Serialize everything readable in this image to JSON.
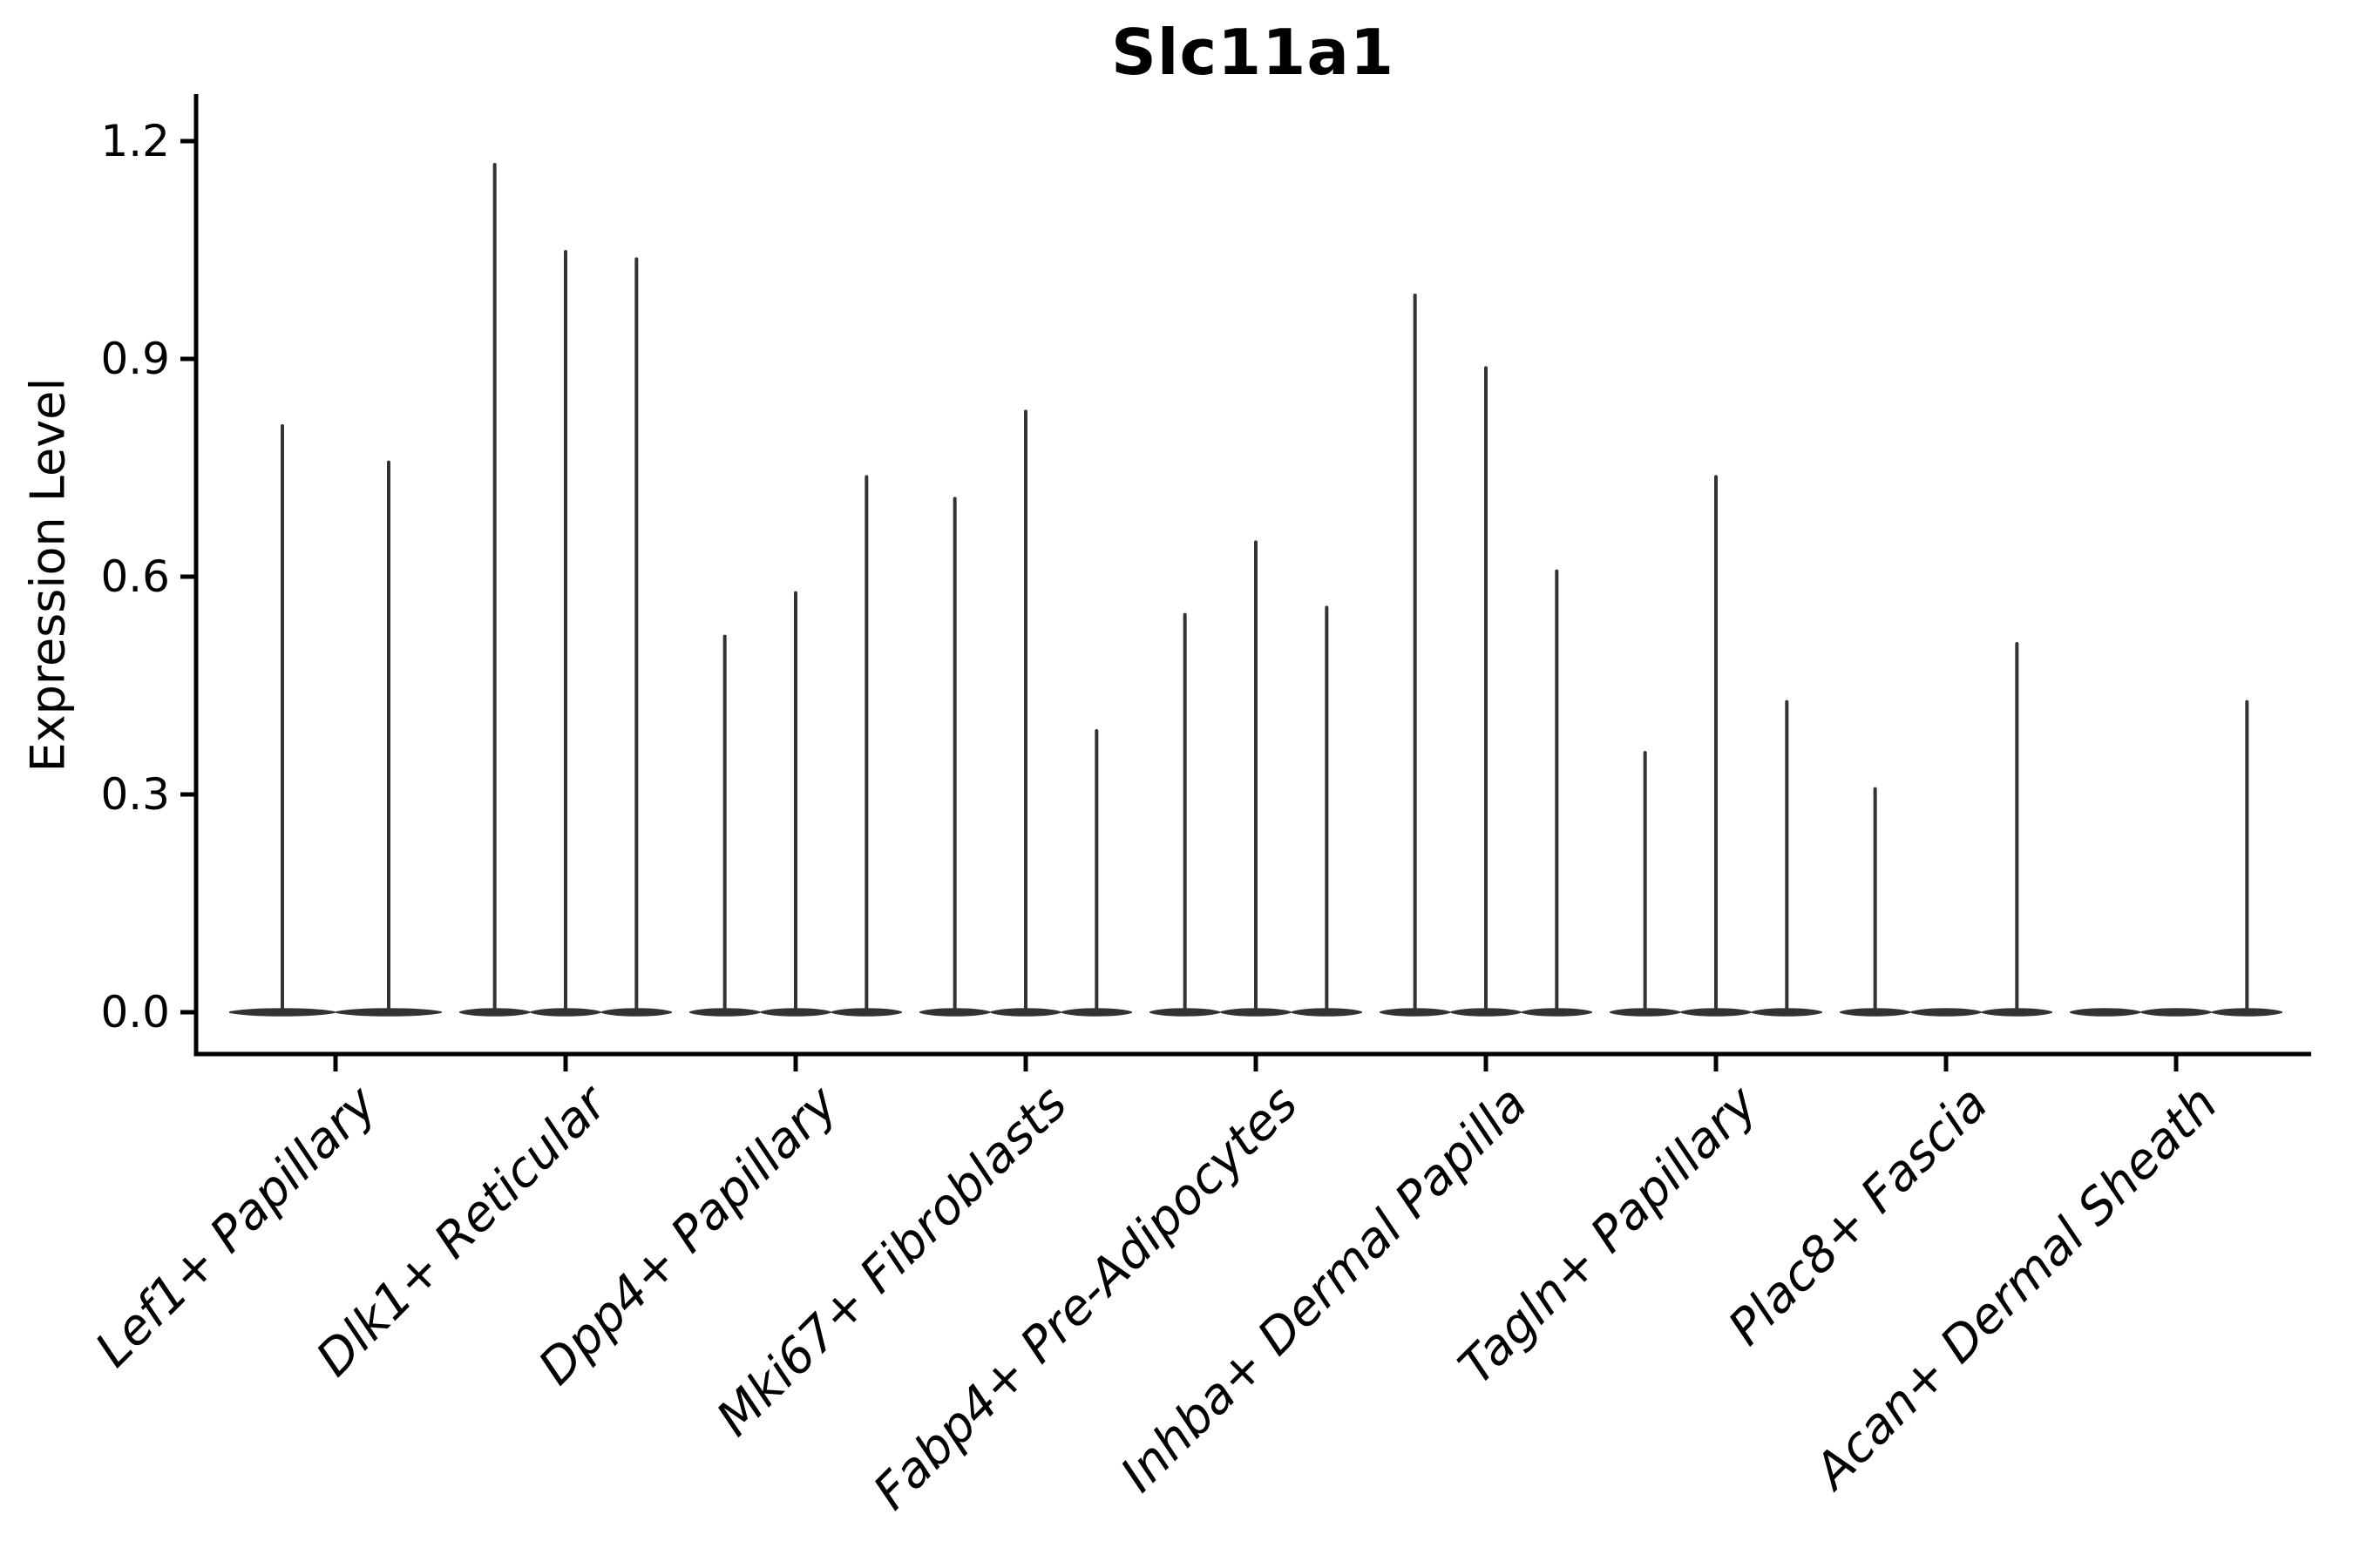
{
  "title": "Slc11a1",
  "chart_data": {
    "type": "violin",
    "title": "Slc11a1",
    "xlabel": "",
    "ylabel": "Expression Level",
    "ylim": [
      0,
      1.2
    ],
    "yticks": [
      "0.0",
      "0.3",
      "0.6",
      "0.9",
      "1.2"
    ],
    "grid": false,
    "legend": "none",
    "description": "Seurat-style violin plot of Slc11a1 expression; thin density spikes rise from flat zero-inflated violin bodies; several violins are flat at 0 (no spike); Lef1+ Papillary group shows only 2 violins",
    "categories": [
      "Lef1+ Papillary",
      "Dlk1+ Reticular",
      "Dpp4+ Papillary",
      "Mki67+ Fibroblasts",
      "Fabp4+ Pre-Adipocytes",
      "Inhba+ Dermal Papilla",
      "Tagln+ Papillary",
      "Plac8+ Fascia",
      "Acan+ Dermal Sheath"
    ],
    "series": [
      {
        "category": "Lef1+ Papillary",
        "violin_max_expression": [
          0.81,
          0.76
        ]
      },
      {
        "category": "Dlk1+ Reticular",
        "violin_max_expression": [
          1.17,
          1.05,
          1.04
        ]
      },
      {
        "category": "Dpp4+ Papillary",
        "violin_max_expression": [
          0.52,
          0.58,
          0.74
        ]
      },
      {
        "category": "Mki67+ Fibroblasts",
        "violin_max_expression": [
          0.71,
          0.83,
          0.39
        ]
      },
      {
        "category": "Fabp4+ Pre-Adipocytes",
        "violin_max_expression": [
          0.55,
          0.65,
          0.56
        ]
      },
      {
        "category": "Inhba+ Dermal Papilla",
        "violin_max_expression": [
          0.99,
          0.89,
          0.61
        ]
      },
      {
        "category": "Tagln+ Papillary",
        "violin_max_expression": [
          0.36,
          0.74,
          0.43
        ]
      },
      {
        "category": "Plac8+ Fascia",
        "violin_max_expression": [
          0.31,
          0,
          0.51
        ]
      },
      {
        "category": "Acan+ Dermal Sheath",
        "violin_max_expression": [
          0,
          0,
          0.43
        ]
      }
    ],
    "colors": {
      "violin_stroke": "#333333",
      "spine": "#000000",
      "text": "#000000",
      "background": "#ffffff"
    }
  }
}
